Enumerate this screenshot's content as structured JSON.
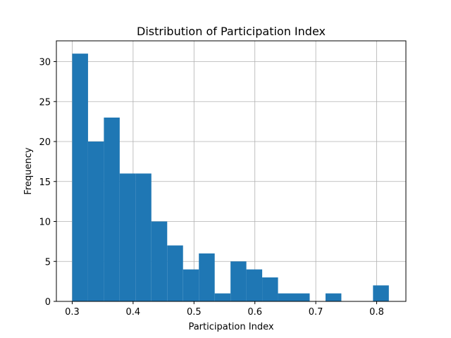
{
  "chart_data": {
    "type": "bar",
    "title": "Distribution of Participation Index",
    "xlabel": "Participation Index",
    "ylabel": "Frequency",
    "xlim": [
      0.274,
      0.848
    ],
    "ylim": [
      0,
      32.6
    ],
    "grid": true,
    "bar_color": "#1f77b4",
    "grid_color": "#b0b0b0",
    "x_ticks": [
      0.3,
      0.4,
      0.5,
      0.6,
      0.7,
      0.8
    ],
    "x_tick_labels": [
      "0.3",
      "0.4",
      "0.5",
      "0.6",
      "0.7",
      "0.8"
    ],
    "y_ticks": [
      0,
      5,
      10,
      15,
      20,
      25,
      30
    ],
    "y_tick_labels": [
      "0",
      "5",
      "10",
      "15",
      "20",
      "25",
      "30"
    ],
    "bin_edges": [
      0.3,
      0.326,
      0.352,
      0.378,
      0.404,
      0.43,
      0.456,
      0.482,
      0.508,
      0.534,
      0.56,
      0.586,
      0.612,
      0.638,
      0.664,
      0.69,
      0.716,
      0.742,
      0.768,
      0.794,
      0.82
    ],
    "counts": [
      31,
      20,
      23,
      16,
      16,
      10,
      7,
      4,
      6,
      1,
      5,
      4,
      3,
      1,
      1,
      0,
      1,
      0,
      0,
      2
    ]
  }
}
